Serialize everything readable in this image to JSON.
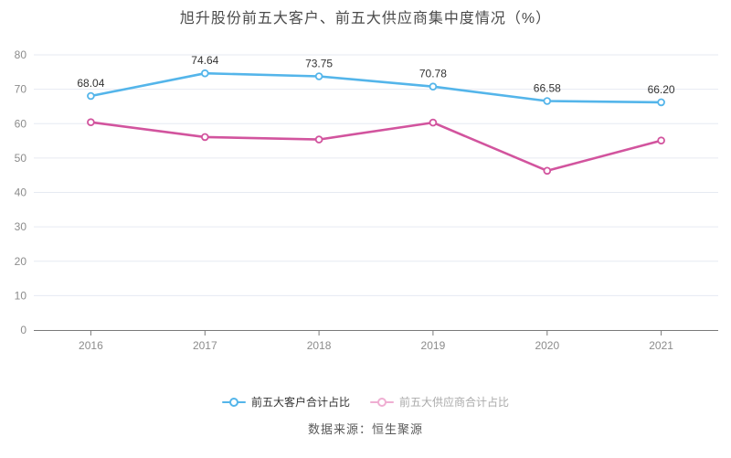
{
  "title": "旭升股份前五大客户、前五大供应商集中度情况（%）",
  "source": "数据来源：恒生聚源",
  "colors": {
    "customer_line": "#54b5ea",
    "supplier_line": "#d2549e",
    "grid": "#e6eaf2",
    "axis": "#7a7a7a",
    "tick_label": "#8c8c8c",
    "data_label": "#333333",
    "title_text": "#4a4a4a",
    "source_text": "#595959",
    "background": "#ffffff"
  },
  "legend": [
    {
      "label": "前五大客户合计占比",
      "marker_color": "#54b5ea",
      "text_color": "#333333"
    },
    {
      "label": "前五大供应商合计占比",
      "marker_color": "#efaed2",
      "text_color": "#aaaaaa"
    }
  ],
  "chart_data": {
    "type": "line",
    "categories": [
      "2016",
      "2017",
      "2018",
      "2019",
      "2020",
      "2021"
    ],
    "series": [
      {
        "name": "前五大客户合计占比",
        "color": "#54b5ea",
        "values": [
          68.04,
          74.64,
          73.75,
          70.78,
          66.58,
          66.2
        ],
        "point_labels": [
          "68.04",
          "74.64",
          "73.75",
          "70.78",
          "66.58",
          "66.20"
        ]
      },
      {
        "name": "前五大供应商合计占比",
        "color": "#d2549e",
        "values": [
          60.4,
          56.1,
          55.4,
          60.3,
          46.3,
          55.1
        ],
        "point_labels": []
      }
    ],
    "ylim": [
      0,
      80
    ],
    "ytick_step": 10,
    "grid": true,
    "legend_position": "bottom",
    "xlabel": "",
    "ylabel": ""
  }
}
